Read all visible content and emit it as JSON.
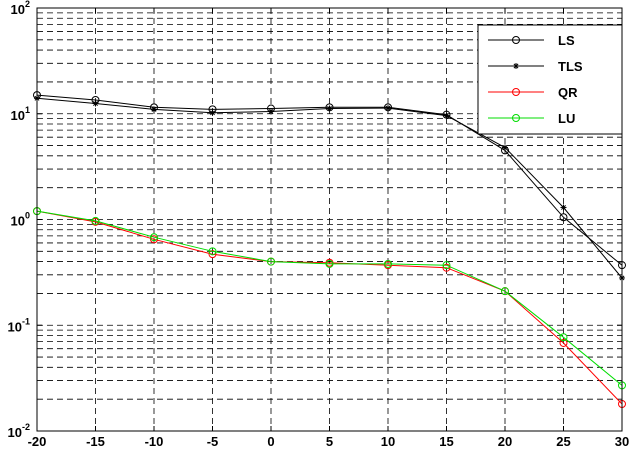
{
  "chart_data": {
    "type": "line",
    "title": "",
    "xlabel": "",
    "ylabel": "",
    "x": [
      -20,
      -15,
      -10,
      -5,
      0,
      5,
      10,
      15,
      20,
      25,
      30
    ],
    "xlim": [
      -20,
      30
    ],
    "ylim": [
      0.01,
      100
    ],
    "yscale": "log",
    "grid": true,
    "grid_style": "dashed",
    "legend_position": "top-right",
    "x_ticks": [
      "-20",
      "-15",
      "-10",
      "-5",
      "0",
      "5",
      "10",
      "15",
      "20",
      "25",
      "30"
    ],
    "y_ticks": [
      {
        "base": "10",
        "exp": "-2",
        "value": 0.01
      },
      {
        "base": "10",
        "exp": "-1",
        "value": 0.1
      },
      {
        "base": "10",
        "exp": "0",
        "value": 1
      },
      {
        "base": "10",
        "exp": "1",
        "value": 10
      },
      {
        "base": "10",
        "exp": "2",
        "value": 100
      }
    ],
    "series": [
      {
        "name": "LS",
        "color": "#000000",
        "marker": "circle",
        "values": [
          15,
          13.5,
          11.5,
          11,
          11.2,
          11.5,
          11.5,
          9.8,
          4.5,
          1.05,
          0.37
        ]
      },
      {
        "name": "TLS",
        "color": "#000000",
        "marker": "star",
        "values": [
          14,
          12.5,
          11,
          10.2,
          10.5,
          11.2,
          11.3,
          9.6,
          4.8,
          1.3,
          0.28
        ]
      },
      {
        "name": "QR",
        "color": "#ff0000",
        "marker": "circle",
        "values": [
          1.2,
          0.95,
          0.65,
          0.47,
          0.4,
          0.39,
          0.37,
          0.35,
          0.21,
          0.068,
          0.018
        ]
      },
      {
        "name": "LU",
        "color": "#00dd00",
        "marker": "circle",
        "values": [
          1.2,
          0.97,
          0.68,
          0.5,
          0.4,
          0.38,
          0.38,
          0.37,
          0.21,
          0.077,
          0.027
        ]
      }
    ]
  }
}
